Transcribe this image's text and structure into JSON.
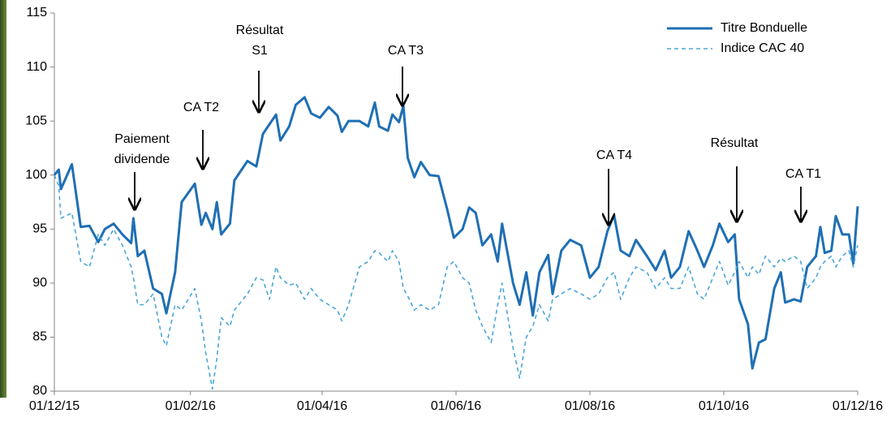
{
  "chart_data": {
    "type": "line",
    "x": [
      "2015-12-01",
      "2015-12-03",
      "2015-12-04",
      "2015-12-09",
      "2015-12-13",
      "2015-12-17",
      "2015-12-21",
      "2015-12-24",
      "2015-12-28",
      "2016-01-01",
      "2016-01-05",
      "2016-01-06",
      "2016-01-08",
      "2016-01-11",
      "2016-01-15",
      "2016-01-19",
      "2016-01-21",
      "2016-01-25",
      "2016-01-28",
      "2016-02-03",
      "2016-02-06",
      "2016-02-08",
      "2016-02-11",
      "2016-02-13",
      "2016-02-15",
      "2016-02-19",
      "2016-02-21",
      "2016-02-27",
      "2016-03-02",
      "2016-03-05",
      "2016-03-08",
      "2016-03-11",
      "2016-03-13",
      "2016-03-17",
      "2016-03-20",
      "2016-03-24",
      "2016-03-27",
      "2016-03-31",
      "2016-04-04",
      "2016-04-08",
      "2016-04-10",
      "2016-04-13",
      "2016-04-18",
      "2016-04-22",
      "2016-04-25",
      "2016-04-27",
      "2016-05-01",
      "2016-05-03",
      "2016-05-06",
      "2016-05-08",
      "2016-05-10",
      "2016-05-13",
      "2016-05-16",
      "2016-05-20",
      "2016-05-24",
      "2016-05-28",
      "2016-05-31",
      "2016-06-04",
      "2016-06-07",
      "2016-06-10",
      "2016-06-13",
      "2016-06-17",
      "2016-06-20",
      "2016-06-22",
      "2016-06-27",
      "2016-06-30",
      "2016-07-03",
      "2016-07-06",
      "2016-07-09",
      "2016-07-13",
      "2016-07-15",
      "2016-07-19",
      "2016-07-23",
      "2016-07-28",
      "2016-08-01",
      "2016-08-05",
      "2016-08-09",
      "2016-08-12",
      "2016-08-15",
      "2016-08-19",
      "2016-08-22",
      "2016-08-27",
      "2016-08-31",
      "2016-09-04",
      "2016-09-07",
      "2016-09-11",
      "2016-09-15",
      "2016-09-19",
      "2016-09-22",
      "2016-09-26",
      "2016-09-29",
      "2016-10-03",
      "2016-10-06",
      "2016-10-08",
      "2016-10-12",
      "2016-10-14",
      "2016-10-17",
      "2016-10-20",
      "2016-10-24",
      "2016-10-27",
      "2016-10-29",
      "2016-11-02",
      "2016-11-05",
      "2016-11-08",
      "2016-11-12",
      "2016-11-14",
      "2016-11-16",
      "2016-11-19",
      "2016-11-21",
      "2016-11-24",
      "2016-11-27",
      "2016-11-29",
      "2016-12-01"
    ],
    "series": [
      {
        "name": "Titre Bonduelle",
        "color": "#1f6fb4",
        "dashed": false,
        "values": [
          100,
          100.5,
          98.7,
          101,
          95.2,
          95.3,
          93.8,
          95,
          95.5,
          94.5,
          93.7,
          96,
          92.5,
          93,
          89.5,
          89,
          87.2,
          91,
          97.5,
          99.2,
          95.4,
          96.5,
          95,
          97.5,
          94.5,
          95.5,
          99.5,
          101.3,
          100.8,
          103.8,
          104.7,
          105.6,
          103.2,
          104.5,
          106.5,
          107.2,
          105.7,
          105.3,
          106.3,
          105.5,
          104,
          105,
          105,
          104.5,
          106.7,
          104.5,
          104.1,
          105.6,
          104.9,
          106.4,
          101.6,
          99.8,
          101.2,
          100,
          99.9,
          96.8,
          94.2,
          95,
          97,
          96.5,
          93.5,
          94.5,
          92,
          95.5,
          90,
          88,
          91,
          87,
          91,
          92.6,
          89,
          93,
          94,
          93.5,
          90.5,
          91.5,
          94.8,
          96.3,
          93,
          92.5,
          94,
          92.5,
          91.2,
          93,
          90.5,
          91.5,
          94.8,
          93,
          91.5,
          93.5,
          95.5,
          93.8,
          94.5,
          88.5,
          86.2,
          82.1,
          84.5,
          84.8,
          89.5,
          91,
          88.2,
          88.5,
          88.3,
          91.5,
          92.5,
          95.2,
          92.8,
          93,
          96.2,
          94.5,
          94.5,
          91.8,
          97.1
        ]
      },
      {
        "name": "Indice CAC 40",
        "color": "#4aa6d8",
        "dashed": true,
        "values": [
          100,
          99,
          96,
          96.5,
          92,
          91.5,
          94.5,
          93.5,
          95,
          93.5,
          91.5,
          90.5,
          88,
          88,
          89,
          85,
          84.2,
          88,
          87.5,
          89.5,
          86.5,
          83.5,
          80.2,
          83,
          86.8,
          86,
          87.5,
          89,
          90.5,
          90.3,
          88.5,
          91.5,
          90.5,
          89.8,
          90,
          88.5,
          89.5,
          88.5,
          88,
          87.5,
          86.5,
          88,
          91.5,
          92,
          93,
          92.8,
          92,
          93,
          92,
          89.5,
          88.8,
          87.5,
          88,
          87.5,
          88,
          91.5,
          92,
          90.5,
          90,
          87.5,
          86,
          84.5,
          88,
          90,
          84,
          81.2,
          85,
          86,
          88,
          86.5,
          88.5,
          89,
          89.5,
          89,
          88.5,
          89,
          90.5,
          91,
          88.5,
          90.5,
          91.5,
          91,
          89.5,
          90.5,
          89.5,
          89.5,
          91.5,
          89,
          88.5,
          90.5,
          92,
          89.8,
          91,
          92,
          90.5,
          91.5,
          90.8,
          92.5,
          91.5,
          92.3,
          92,
          92.5,
          92,
          89.5,
          90.5,
          91.5,
          92,
          92.5,
          91.5,
          92.5,
          93,
          91.5,
          93.5
        ]
      }
    ],
    "xlim": [
      "2015-12-01",
      "2016-12-01"
    ],
    "xticks": [
      {
        "value": "2015-12-01",
        "label": "01/12/15"
      },
      {
        "value": "2016-02-01",
        "label": "01/02/16"
      },
      {
        "value": "2016-04-01",
        "label": "01/04/16"
      },
      {
        "value": "2016-06-01",
        "label": "01/06/16"
      },
      {
        "value": "2016-08-01",
        "label": "01/08/16"
      },
      {
        "value": "2016-10-01",
        "label": "01/10/16"
      },
      {
        "value": "2016-12-01",
        "label": "01/12/16"
      }
    ],
    "ylim": [
      80,
      115
    ],
    "yticks": [
      80,
      85,
      90,
      95,
      100,
      105,
      110,
      115
    ],
    "grid": false,
    "legend": "top-right",
    "annotations": [
      [
        "Paiement",
        "dividende"
      ],
      [
        "CA T2"
      ],
      [
        "Résultat",
        "S1"
      ],
      [
        "CA T3"
      ],
      [
        "CA T4"
      ],
      [
        "Résultat"
      ],
      [
        "CA T1"
      ]
    ]
  }
}
